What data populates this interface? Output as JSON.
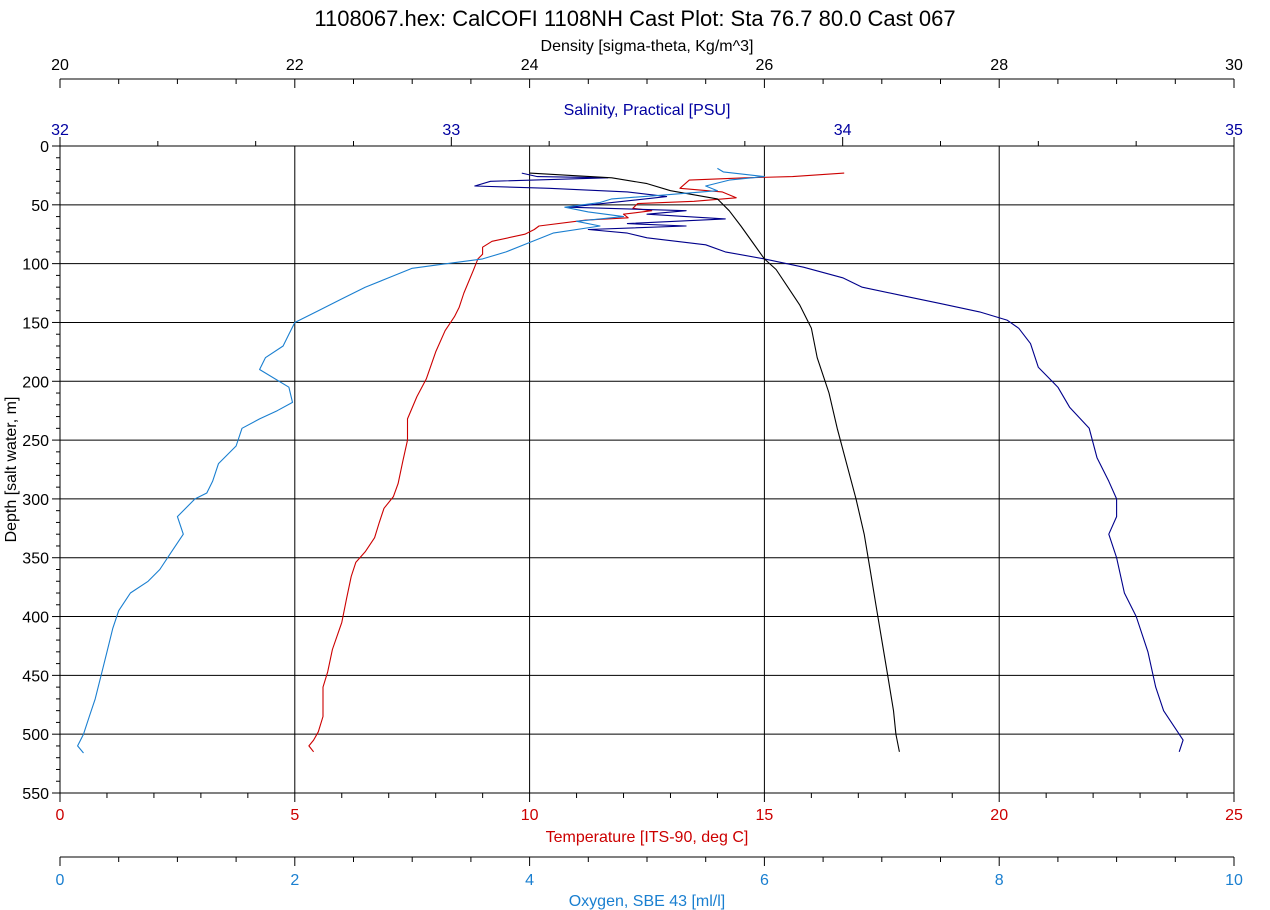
{
  "chart_data": {
    "type": "line",
    "title": "1108067.hex: CalCOFI 1108NH Cast Plot: Sta 76.7 80.0 Cast 067",
    "grid": true,
    "y_axis": {
      "label": "Depth [salt water, m]",
      "range": [
        0,
        550
      ],
      "inverted": true,
      "ticks": [
        0,
        50,
        100,
        150,
        200,
        250,
        300,
        350,
        400,
        450,
        500,
        550
      ],
      "color": "#000000"
    },
    "x_axes": [
      {
        "key": "density",
        "label": "Density [sigma-theta, Kg/m^3]",
        "position": "top",
        "range": [
          20,
          30
        ],
        "ticks": [
          20,
          22,
          24,
          26,
          28,
          30
        ],
        "color": "#000000"
      },
      {
        "key": "salinity",
        "label": "Salinity, Practical [PSU]",
        "position": "top",
        "range": [
          32,
          35
        ],
        "ticks": [
          32,
          33,
          34,
          35
        ],
        "color": "#0000a0"
      },
      {
        "key": "temperature",
        "label": "Temperature [ITS-90, deg C]",
        "position": "bottom",
        "range": [
          0,
          25
        ],
        "ticks": [
          0,
          5,
          10,
          15,
          20,
          25
        ],
        "color": "#cc0000"
      },
      {
        "key": "oxygen",
        "label": "Oxygen, SBE 43 [ml/l]",
        "position": "bottom",
        "range": [
          0,
          10
        ],
        "ticks": [
          0,
          2,
          4,
          6,
          8,
          10
        ],
        "color": "#1a7fd0"
      }
    ],
    "series": [
      {
        "axis": "temperature",
        "color": "#cc0000",
        "points": [
          [
            16.7,
            23
          ],
          [
            15.6,
            26
          ],
          [
            14.6,
            27
          ],
          [
            13.4,
            29
          ],
          [
            13.2,
            36
          ],
          [
            14.1,
            39
          ],
          [
            14.4,
            44
          ],
          [
            13.5,
            47
          ],
          [
            12.3,
            49
          ],
          [
            12.2,
            53
          ],
          [
            12.6,
            55
          ],
          [
            12.0,
            58
          ],
          [
            12.1,
            61
          ],
          [
            11.2,
            63
          ],
          [
            10.2,
            68
          ],
          [
            10.1,
            71
          ],
          [
            9.9,
            75
          ],
          [
            9.2,
            81
          ],
          [
            9.0,
            86
          ],
          [
            9.0,
            92
          ],
          [
            8.9,
            96
          ],
          [
            8.8,
            106
          ],
          [
            8.6,
            125
          ],
          [
            8.5,
            137
          ],
          [
            8.4,
            145
          ],
          [
            8.2,
            157
          ],
          [
            8.0,
            175
          ],
          [
            7.8,
            198
          ],
          [
            7.6,
            213
          ],
          [
            7.4,
            232
          ],
          [
            7.4,
            250
          ],
          [
            7.3,
            268
          ],
          [
            7.2,
            287
          ],
          [
            7.1,
            298
          ],
          [
            6.9,
            308
          ],
          [
            6.8,
            320
          ],
          [
            6.7,
            333
          ],
          [
            6.5,
            345
          ],
          [
            6.3,
            354
          ],
          [
            6.2,
            366
          ],
          [
            6.1,
            385
          ],
          [
            6.0,
            405
          ],
          [
            5.8,
            428
          ],
          [
            5.7,
            447
          ],
          [
            5.6,
            460
          ],
          [
            5.6,
            472
          ],
          [
            5.6,
            485
          ],
          [
            5.5,
            498
          ],
          [
            5.4,
            505
          ],
          [
            5.3,
            510
          ],
          [
            5.4,
            515
          ]
        ]
      },
      {
        "axis": "salinity",
        "color": "#00008b",
        "points": [
          [
            33.18,
            23
          ],
          [
            33.22,
            26
          ],
          [
            33.4,
            27
          ],
          [
            33.1,
            30
          ],
          [
            33.06,
            34
          ],
          [
            33.25,
            36
          ],
          [
            33.45,
            39
          ],
          [
            33.55,
            43
          ],
          [
            33.3,
            52
          ],
          [
            33.6,
            55
          ],
          [
            33.5,
            58
          ],
          [
            33.7,
            62
          ],
          [
            33.45,
            66
          ],
          [
            33.6,
            68
          ],
          [
            33.35,
            71
          ],
          [
            33.45,
            74
          ],
          [
            33.5,
            78
          ],
          [
            33.65,
            84
          ],
          [
            33.7,
            90
          ],
          [
            33.8,
            96
          ],
          [
            33.9,
            103
          ],
          [
            34.0,
            112
          ],
          [
            34.05,
            120
          ],
          [
            34.15,
            127
          ],
          [
            34.25,
            134
          ],
          [
            34.35,
            141
          ],
          [
            34.42,
            148
          ],
          [
            34.45,
            155
          ],
          [
            34.48,
            168
          ],
          [
            34.5,
            188
          ],
          [
            34.55,
            205
          ],
          [
            34.58,
            222
          ],
          [
            34.63,
            240
          ],
          [
            34.65,
            265
          ],
          [
            34.68,
            285
          ],
          [
            34.7,
            300
          ],
          [
            34.7,
            315
          ],
          [
            34.68,
            330
          ],
          [
            34.7,
            350
          ],
          [
            34.72,
            380
          ],
          [
            34.75,
            400
          ],
          [
            34.78,
            430
          ],
          [
            34.8,
            460
          ],
          [
            34.82,
            480
          ],
          [
            34.85,
            495
          ],
          [
            34.87,
            505
          ],
          [
            34.86,
            515
          ]
        ]
      },
      {
        "axis": "density",
        "color": "#000000",
        "points": [
          [
            24.0,
            23
          ],
          [
            24.7,
            27
          ],
          [
            25.0,
            32
          ],
          [
            25.2,
            38
          ],
          [
            25.6,
            45
          ],
          [
            25.7,
            55
          ],
          [
            25.8,
            68
          ],
          [
            25.9,
            82
          ],
          [
            26.0,
            96
          ],
          [
            26.1,
            105
          ],
          [
            26.2,
            120
          ],
          [
            26.3,
            135
          ],
          [
            26.4,
            155
          ],
          [
            26.45,
            180
          ],
          [
            26.55,
            210
          ],
          [
            26.62,
            240
          ],
          [
            26.7,
            270
          ],
          [
            26.78,
            300
          ],
          [
            26.85,
            330
          ],
          [
            26.9,
            360
          ],
          [
            26.95,
            390
          ],
          [
            27.0,
            420
          ],
          [
            27.05,
            450
          ],
          [
            27.1,
            480
          ],
          [
            27.12,
            500
          ],
          [
            27.15,
            515
          ]
        ]
      },
      {
        "axis": "oxygen",
        "color": "#1a7fd0",
        "points": [
          [
            5.6,
            19
          ],
          [
            5.65,
            22
          ],
          [
            6.0,
            26
          ],
          [
            5.7,
            29
          ],
          [
            5.5,
            34
          ],
          [
            5.6,
            38
          ],
          [
            5.1,
            42
          ],
          [
            4.7,
            45
          ],
          [
            4.6,
            48
          ],
          [
            4.3,
            52
          ],
          [
            4.5,
            56
          ],
          [
            4.8,
            60
          ],
          [
            4.4,
            64
          ],
          [
            4.6,
            68
          ],
          [
            4.2,
            74
          ],
          [
            4.0,
            82
          ],
          [
            3.8,
            90
          ],
          [
            3.6,
            96
          ],
          [
            3.3,
            100
          ],
          [
            3.0,
            104
          ],
          [
            2.8,
            112
          ],
          [
            2.6,
            120
          ],
          [
            2.4,
            130
          ],
          [
            2.2,
            140
          ],
          [
            2.0,
            150
          ],
          [
            1.95,
            160
          ],
          [
            1.9,
            170
          ],
          [
            1.75,
            180
          ],
          [
            1.7,
            190
          ],
          [
            1.95,
            205
          ],
          [
            1.98,
            218
          ],
          [
            1.85,
            225
          ],
          [
            1.7,
            232
          ],
          [
            1.55,
            240
          ],
          [
            1.5,
            255
          ],
          [
            1.35,
            270
          ],
          [
            1.3,
            285
          ],
          [
            1.25,
            295
          ],
          [
            1.15,
            300
          ],
          [
            1.0,
            315
          ],
          [
            1.05,
            330
          ],
          [
            0.95,
            345
          ],
          [
            0.85,
            360
          ],
          [
            0.75,
            370
          ],
          [
            0.6,
            380
          ],
          [
            0.5,
            395
          ],
          [
            0.45,
            410
          ],
          [
            0.4,
            430
          ],
          [
            0.35,
            450
          ],
          [
            0.3,
            470
          ],
          [
            0.25,
            485
          ],
          [
            0.2,
            500
          ],
          [
            0.15,
            510
          ],
          [
            0.2,
            516
          ]
        ]
      }
    ]
  }
}
